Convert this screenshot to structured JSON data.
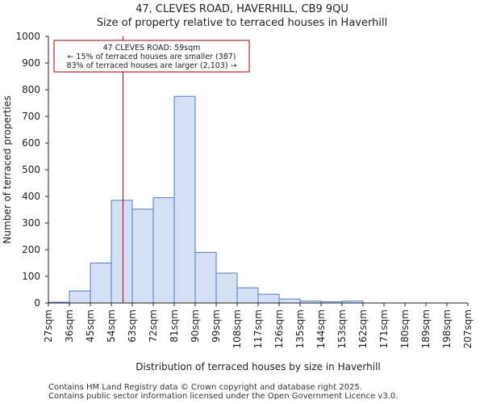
{
  "title": "47, CLEVES ROAD, HAVERHILL, CB9 9QU",
  "subtitle": "Size of property relative to terraced houses in Haverhill",
  "footer": {
    "line1": "Contains HM Land Registry data © Crown copyright and database right 2025.",
    "line2": "Contains public sector information licensed under the Open Government Licence v3.0."
  },
  "colors": {
    "bar_fill": "#d6e0f5",
    "bar_stroke": "#4f7cc9",
    "marker": "#aa0000",
    "annotation_border": "#aa0000"
  },
  "chart_data": {
    "type": "bar",
    "xlabel": "Distribution of terraced houses by size in Haverhill",
    "ylabel": "Number of terraced properties",
    "ylim": [
      0,
      1000
    ],
    "yticks": [
      0,
      100,
      200,
      300,
      400,
      500,
      600,
      700,
      800,
      900,
      1000
    ],
    "bin_edges": [
      "27sqm",
      "36sqm",
      "45sqm",
      "54sqm",
      "63sqm",
      "72sqm",
      "81sqm",
      "90sqm",
      "99sqm",
      "108sqm",
      "117sqm",
      "126sqm",
      "135sqm",
      "144sqm",
      "153sqm",
      "162sqm",
      "171sqm",
      "180sqm",
      "189sqm",
      "198sqm",
      "207sqm"
    ],
    "values": [
      3,
      45,
      150,
      385,
      352,
      395,
      775,
      190,
      112,
      57,
      33,
      15,
      7,
      5,
      7,
      0,
      0,
      0,
      0,
      0
    ],
    "marker_value": 59,
    "x_min": 27,
    "bin_width": 9,
    "annotation": {
      "line1": "47 CLEVES ROAD: 59sqm",
      "line2": "← 15% of terraced houses are smaller (387)",
      "line3": "83% of terraced houses are larger (2,103) →"
    }
  }
}
